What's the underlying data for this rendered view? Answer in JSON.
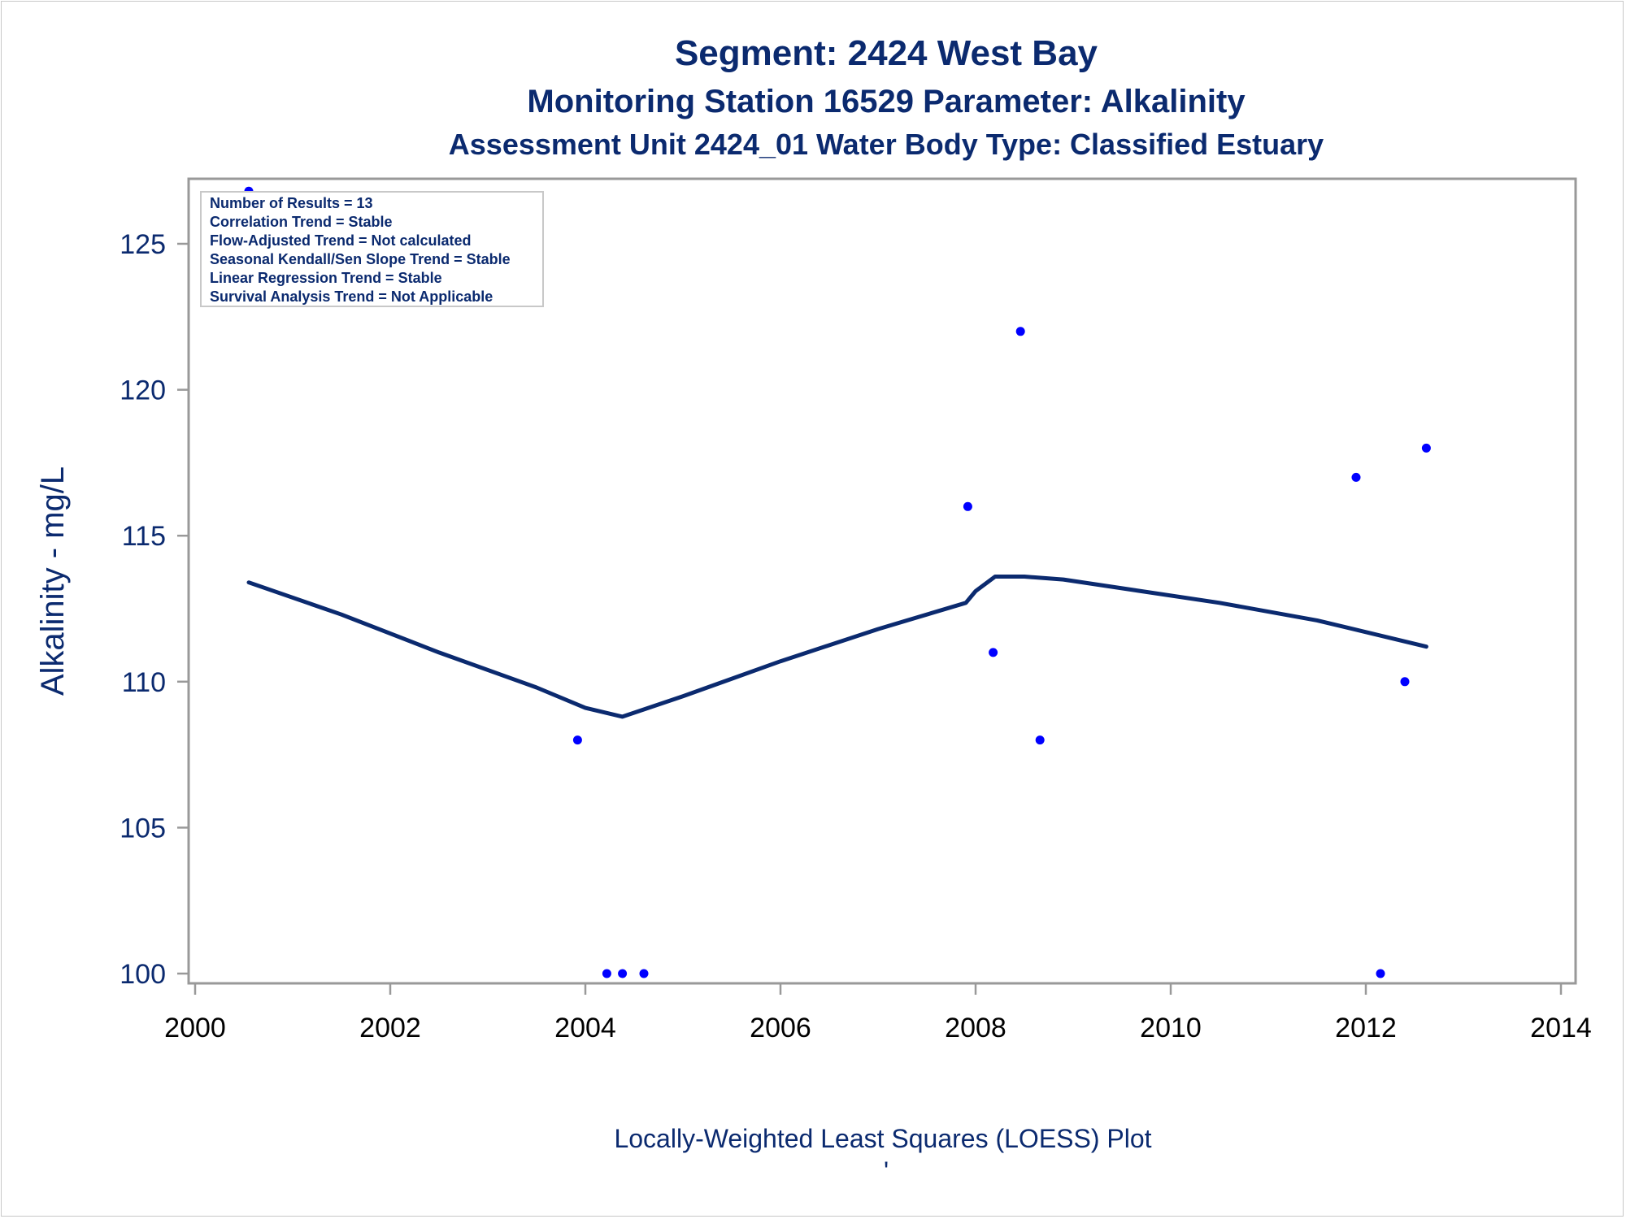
{
  "chart_data": {
    "type": "scatter",
    "title": "Segment: 2424  West Bay",
    "subtitle": "Monitoring Station 16529 Parameter: Alkalinity",
    "subtitle2": "Assessment Unit 2424_01   Water Body Type: Classified Estuary",
    "xlabel": "",
    "ylabel": "Alkalinity - mg/L",
    "footnote": "Locally-Weighted Least Squares (LOESS) Plot",
    "footnote_mark": "'",
    "xlim": [
      2000,
      2014
    ],
    "ylim": [
      99.7,
      127.0
    ],
    "x_ticks": [
      2000,
      2002,
      2004,
      2006,
      2008,
      2010,
      2012,
      2014
    ],
    "y_ticks": [
      100,
      105,
      110,
      115,
      120,
      125
    ],
    "grid": false,
    "colors": {
      "points": "#0000ff",
      "line": "#0b2a6f",
      "axis": "#999999",
      "text": "#0b2a6f"
    },
    "points": [
      {
        "x": 2000.55,
        "y": 126.8
      },
      {
        "x": 2003.92,
        "y": 108
      },
      {
        "x": 2004.22,
        "y": 100
      },
      {
        "x": 2004.38,
        "y": 100
      },
      {
        "x": 2004.6,
        "y": 100
      },
      {
        "x": 2007.92,
        "y": 116
      },
      {
        "x": 2008.18,
        "y": 111
      },
      {
        "x": 2008.46,
        "y": 122
      },
      {
        "x": 2008.66,
        "y": 108
      },
      {
        "x": 2011.9,
        "y": 117
      },
      {
        "x": 2012.15,
        "y": 100
      },
      {
        "x": 2012.4,
        "y": 110
      },
      {
        "x": 2012.62,
        "y": 118
      }
    ],
    "series": [
      {
        "type": "loess",
        "x": [
          2000.55,
          2001.5,
          2002.5,
          2003.5,
          2004.0,
          2004.38,
          2005.0,
          2006.0,
          2007.0,
          2007.9,
          2008.0,
          2008.2,
          2008.5,
          2008.9,
          2009.5,
          2010.5,
          2011.5,
          2012.62
        ],
        "y": [
          113.4,
          112.3,
          111.0,
          109.8,
          109.1,
          108.8,
          109.5,
          110.7,
          111.8,
          112.7,
          113.1,
          113.6,
          113.6,
          113.5,
          113.2,
          112.7,
          112.1,
          111.2
        ]
      }
    ],
    "stats_box": [
      "Number of Results = 13",
      "Correlation Trend = Stable",
      "Flow-Adjusted Trend = Not calculated",
      "Seasonal Kendall/Sen Slope Trend = Stable",
      "Linear Regression Trend = Stable",
      "Survival Analysis Trend = Not Applicable"
    ]
  }
}
